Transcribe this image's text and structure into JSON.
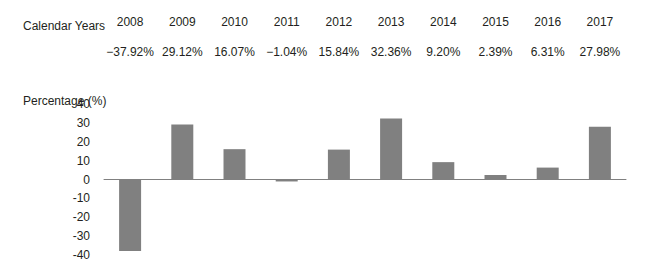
{
  "chart_data": {
    "type": "bar",
    "header": "Calendar Years",
    "y_label": "Percentage (%)",
    "categories": [
      "2008",
      "2009",
      "2010",
      "2011",
      "2012",
      "2013",
      "2014",
      "2015",
      "2016",
      "2017"
    ],
    "values": [
      -37.92,
      29.12,
      16.07,
      -1.04,
      15.84,
      32.36,
      9.2,
      2.39,
      6.31,
      27.98
    ],
    "value_labels": [
      "−37.92%",
      "29.12%",
      "16.07%",
      "−1.04%",
      "15.84%",
      "32.36%",
      "9.20%",
      "2.39%",
      "6.31%",
      "27.98%"
    ],
    "color": "#808080",
    "ylim": [
      -40,
      40
    ],
    "yticks": [
      -40,
      -30,
      -20,
      -10,
      0,
      10,
      20,
      30,
      40
    ],
    "grid": false,
    "data_labels": true
  }
}
